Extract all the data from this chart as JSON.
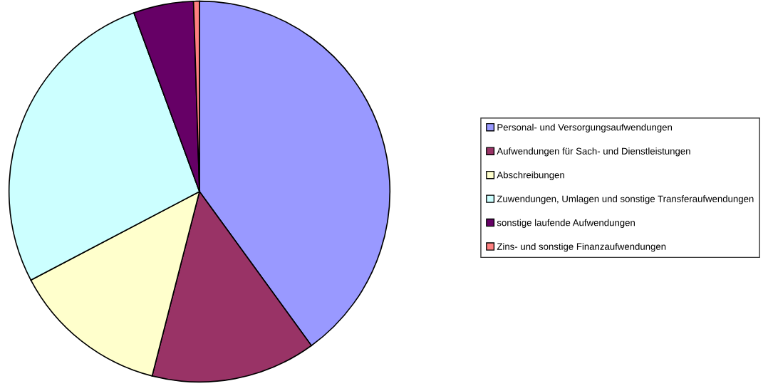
{
  "chart_data": {
    "type": "pie",
    "categories": [
      "Personal- und Versorgungsaufwendungen",
      "Aufwendungen für Sach- und Dienstleistungen",
      "Abschreibungen",
      "Zuwendungen, Umlagen und sonstige Transferaufwendungen",
      "sonstige laufende Aufwendungen",
      "Zins- und sonstige Finanzaufwendungen"
    ],
    "values": [
      40.0,
      14.0,
      13.3,
      27.1,
      5.1,
      0.5
    ],
    "colors": [
      "#9999ff",
      "#993366",
      "#ffffcc",
      "#ccffff",
      "#660066",
      "#ff8080"
    ],
    "legend": "right"
  }
}
